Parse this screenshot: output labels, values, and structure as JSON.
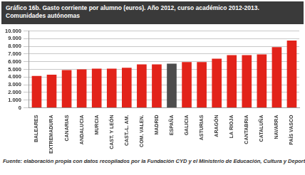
{
  "chart_data": {
    "type": "bar",
    "title": [
      "Gráfico 16b. Gasto corriente por alumno (euros). Año 2012, curso académico 2012-2013.",
      "Comunidades autónomas"
    ],
    "source": "Fuente: elaboración propia con datos recopilados por la Fundación CYD y el Ministerio de Educación, Cultura y Deporte.",
    "categories": [
      "BALEARES",
      "EXTREMADURA",
      "CANARIAS",
      "ANDALUCIA",
      "MURCIA",
      "CAST. Y LEÓN",
      "CAST.-L. AM.",
      "COM. VALEN.",
      "MADRID",
      "ESPAÑA",
      "GALICIA",
      "ASTURIAS",
      "ARAGÓN",
      "LA RIOJA",
      "CANTABRIA",
      "CATALUÑA",
      "NAVARRA",
      "PAÍS VASCO"
    ],
    "values": [
      4150,
      4300,
      4900,
      5000,
      5100,
      5100,
      5200,
      5650,
      5650,
      5750,
      5950,
      5950,
      6400,
      6850,
      6850,
      6950,
      7900,
      8750
    ],
    "colors": [
      "#e2231a",
      "#e2231a",
      "#e2231a",
      "#e2231a",
      "#e2231a",
      "#e2231a",
      "#e2231a",
      "#e2231a",
      "#e2231a",
      "#4d4d4d",
      "#e2231a",
      "#e2231a",
      "#e2231a",
      "#e2231a",
      "#e2231a",
      "#e2231a",
      "#e2231a",
      "#e2231a"
    ],
    "ylim": [
      0,
      10000
    ],
    "yticks": [
      0,
      {
        "value": 1000,
        "label": "1.000"
      },
      {
        "value": 2000,
        "label": "2.000"
      },
      {
        "value": 3000,
        "label": "3.000"
      },
      {
        "value": 4000,
        "label": "4.000"
      },
      {
        "value": 5000,
        "label": "5.000"
      },
      {
        "value": 6000,
        "label": "6.000"
      },
      {
        "value": 7000,
        "label": "7.000"
      },
      {
        "value": 8000,
        "label": "8.000"
      },
      {
        "value": 9000,
        "label": "9.000"
      },
      {
        "value": 10000,
        "label": "10.000"
      }
    ],
    "grid": true
  }
}
